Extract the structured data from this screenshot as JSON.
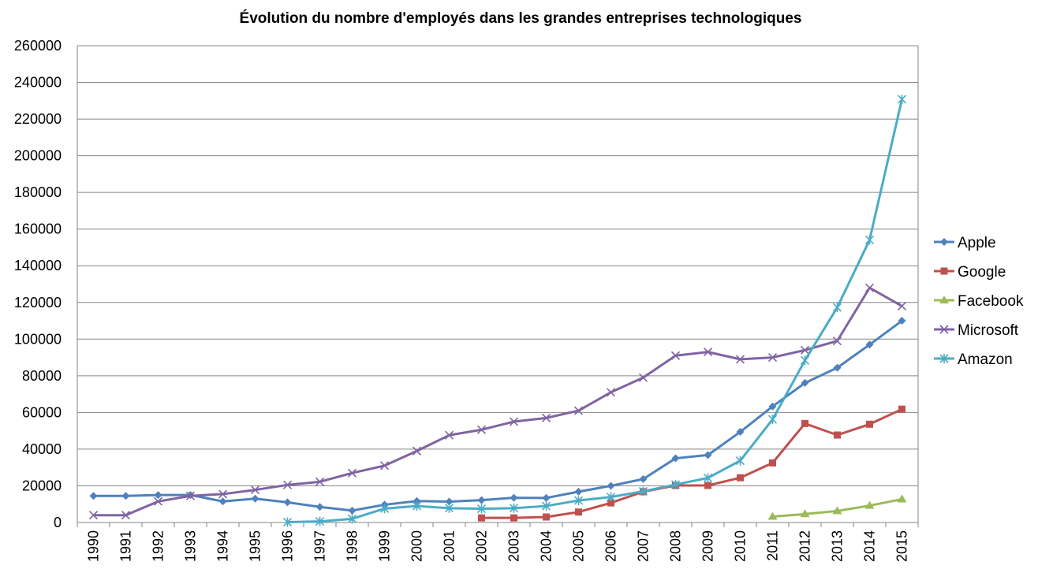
{
  "chart_data": {
    "type": "line",
    "title": "Évolution du nombre d'employés dans les grandes entreprises technologiques",
    "xlabel": "",
    "ylabel": "",
    "ylim": [
      0,
      260000
    ],
    "y_ticks": [
      0,
      20000,
      40000,
      60000,
      80000,
      100000,
      120000,
      140000,
      160000,
      180000,
      200000,
      220000,
      240000,
      260000
    ],
    "grid": true,
    "legend_position": "right",
    "x": [
      "1990",
      "1991",
      "1992",
      "1993",
      "1994",
      "1995",
      "1996",
      "1997",
      "1998",
      "1999",
      "2000",
      "2001",
      "2002",
      "2003",
      "2004",
      "2005",
      "2006",
      "2007",
      "2008",
      "2009",
      "2010",
      "2011",
      "2012",
      "2013",
      "2014",
      "2015"
    ],
    "series": [
      {
        "name": "Apple",
        "color": "#4F81BD",
        "marker": "diamond",
        "values": [
          14500,
          14500,
          15000,
          15000,
          11500,
          13000,
          11000,
          8500,
          6500,
          9700,
          11700,
          11400,
          12200,
          13500,
          13400,
          16800,
          20000,
          23700,
          35000,
          36800,
          49400,
          63300,
          76100,
          84400,
          97000,
          110000
        ]
      },
      {
        "name": "Google",
        "color": "#C0504D",
        "marker": "square",
        "values": [
          null,
          null,
          null,
          null,
          null,
          null,
          null,
          null,
          null,
          null,
          null,
          null,
          2500,
          2500,
          3000,
          5700,
          10700,
          16800,
          20200,
          20200,
          24400,
          32500,
          54000,
          47700,
          53600,
          61800
        ]
      },
      {
        "name": "Facebook",
        "color": "#9BBB59",
        "marker": "triangle",
        "values": [
          null,
          null,
          null,
          null,
          null,
          null,
          null,
          null,
          null,
          null,
          null,
          null,
          null,
          null,
          null,
          null,
          null,
          null,
          null,
          null,
          null,
          3200,
          4600,
          6300,
          9200,
          12700
        ]
      },
      {
        "name": "Microsoft",
        "color": "#8064A2",
        "marker": "x",
        "values": [
          4000,
          4000,
          11500,
          14500,
          15500,
          17800,
          20500,
          22200,
          27000,
          31000,
          39000,
          47600,
          50600,
          55000,
          57000,
          61000,
          71000,
          79000,
          91000,
          93000,
          89000,
          90000,
          94000,
          99000,
          128000,
          118000
        ]
      },
      {
        "name": "Amazon",
        "color": "#4BACC6",
        "marker": "star",
        "values": [
          null,
          null,
          null,
          null,
          null,
          null,
          200,
          600,
          2000,
          7600,
          9000,
          7800,
          7500,
          7800,
          9000,
          12000,
          13900,
          17000,
          20700,
          24300,
          33700,
          56200,
          88400,
          117300,
          154100,
          230800
        ]
      }
    ]
  }
}
